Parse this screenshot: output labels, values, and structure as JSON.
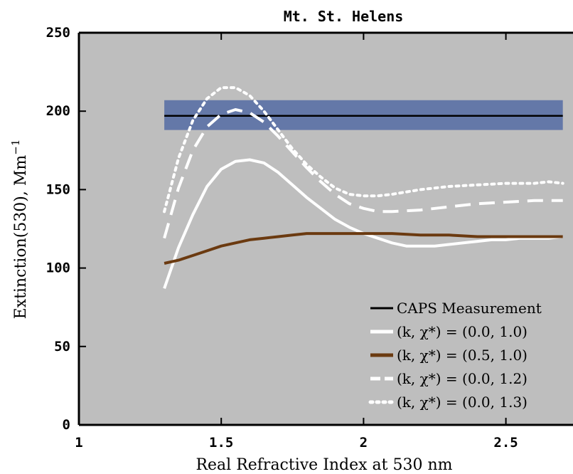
{
  "chart_data": {
    "type": "line",
    "title": "Mt. St. Helens",
    "xlabel": "Real Refractive Index at 530 nm",
    "ylabel": "Extinction(530), Mm",
    "ylabel_superscript": "−1",
    "xlim": [
      1,
      2.72
    ],
    "ylim": [
      0,
      250
    ],
    "xticks": [
      1,
      1.5,
      2,
      2.5
    ],
    "xtick_labels": [
      "1",
      "1.5",
      "2",
      "2.5"
    ],
    "yticks": [
      0,
      50,
      100,
      150,
      200,
      250
    ],
    "ytick_labels": [
      "0",
      "50",
      "100",
      "150",
      "200",
      "250"
    ],
    "grid": false,
    "background": "#bebebe",
    "legend_position": "bottom-right",
    "measurement": {
      "name": "CAPS Measurement",
      "value": 197,
      "band": [
        188,
        207
      ],
      "x_range": [
        1.3,
        2.7
      ],
      "band_color": "#6478a8",
      "line_color": "#000000"
    },
    "series": [
      {
        "name": "(k, χ*) = (0.0, 1.0)",
        "color": "#ffffff",
        "style": "solid",
        "x": [
          1.3,
          1.35,
          1.4,
          1.45,
          1.5,
          1.55,
          1.6,
          1.65,
          1.7,
          1.75,
          1.8,
          1.85,
          1.9,
          1.95,
          2.0,
          2.05,
          2.1,
          2.15,
          2.2,
          2.25,
          2.3,
          2.35,
          2.4,
          2.45,
          2.5,
          2.55,
          2.6,
          2.65,
          2.7
        ],
        "y": [
          87,
          113,
          134,
          152,
          163,
          168,
          169,
          167,
          161,
          153,
          145,
          138,
          131,
          126,
          122,
          119,
          116,
          114,
          114,
          114,
          115,
          116,
          117,
          118,
          118,
          119,
          119,
          119,
          120
        ]
      },
      {
        "name": "(k, χ*) = (0.5, 1.0)",
        "color": "#6b3a10",
        "style": "solid",
        "x": [
          1.3,
          1.35,
          1.4,
          1.45,
          1.5,
          1.55,
          1.6,
          1.65,
          1.7,
          1.75,
          1.8,
          1.85,
          1.9,
          2.0,
          2.1,
          2.2,
          2.3,
          2.4,
          2.5,
          2.6,
          2.7
        ],
        "y": [
          103,
          105,
          108,
          111,
          114,
          116,
          118,
          119,
          120,
          121,
          122,
          122,
          122,
          122,
          122,
          121,
          121,
          120,
          120,
          120,
          120
        ]
      },
      {
        "name": "(k, χ*) = (0.0, 1.2)",
        "color": "#ffffff",
        "style": "dashed",
        "x": [
          1.3,
          1.35,
          1.4,
          1.45,
          1.5,
          1.55,
          1.6,
          1.65,
          1.7,
          1.75,
          1.8,
          1.85,
          1.9,
          1.95,
          2.0,
          2.05,
          2.1,
          2.2,
          2.3,
          2.4,
          2.5,
          2.6,
          2.7
        ],
        "y": [
          119,
          151,
          175,
          190,
          198,
          201,
          199,
          193,
          184,
          174,
          164,
          155,
          147,
          141,
          138,
          136,
          136,
          137,
          139,
          141,
          142,
          143,
          143
        ]
      },
      {
        "name": "(k, χ*) = (0.0, 1.3)",
        "color": "#ffffff",
        "style": "dotted",
        "x": [
          1.3,
          1.35,
          1.4,
          1.45,
          1.5,
          1.55,
          1.6,
          1.65,
          1.7,
          1.75,
          1.8,
          1.85,
          1.9,
          1.95,
          2.0,
          2.05,
          2.1,
          2.2,
          2.3,
          2.4,
          2.5,
          2.6,
          2.65,
          2.7
        ],
        "y": [
          136,
          170,
          194,
          208,
          215,
          215,
          210,
          200,
          188,
          176,
          166,
          158,
          151,
          147,
          146,
          146,
          147,
          150,
          152,
          153,
          154,
          154,
          155,
          154
        ]
      }
    ]
  }
}
